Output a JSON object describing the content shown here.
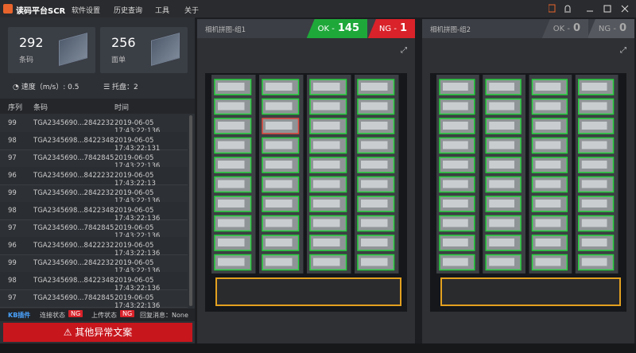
{
  "app": {
    "title": "读码平台SCR",
    "menu": [
      "软件设置",
      "历史查询",
      "工具",
      "关于"
    ]
  },
  "stats": [
    {
      "value": 292,
      "label": "条码"
    },
    {
      "value": 256,
      "label": "面单"
    }
  ],
  "speed": {
    "label": "速度（m/s）:",
    "value": 0.5
  },
  "pallet": {
    "label": "托盘：",
    "value": 2
  },
  "table": {
    "columns": [
      "序列",
      "条码",
      "时间"
    ],
    "rows": [
      [
        99,
        "TGA2345690...2842232",
        "2019-06-05 17:43:22:136"
      ],
      [
        98,
        "TGA2345698...8422348",
        "2019-06-05 17:43:22:131"
      ],
      [
        97,
        "TGA2345690...7842845",
        "2019-06-05 17:43:22:136"
      ],
      [
        96,
        "TGA2345690...8422232",
        "2019-06-05 17:43:22:13"
      ],
      [
        99,
        "TGA2345690...2842232",
        "2019-06-05 17:43:22:136"
      ],
      [
        98,
        "TGA2345698...8422348",
        "2019-06-05 17:43:22:136"
      ],
      [
        97,
        "TGA2345690...7842845",
        "2019-06-05 17:43:22:136"
      ],
      [
        96,
        "TGA2345690...8422232",
        "2019-06-05 17:43:22:136"
      ],
      [
        99,
        "TGA2345690...2842232",
        "2019-06-05 17:43:22:136"
      ],
      [
        98,
        "TGA2345698...8422348",
        "2019-06-05 17:43:22:136"
      ],
      [
        97,
        "TGA2345690...7842845",
        "2019-06-05 17:43:22:136"
      ]
    ]
  },
  "status": {
    "plugin": "KB插件",
    "connection": {
      "label": "连接状态",
      "value": "NG"
    },
    "upload": {
      "label": "上传状态",
      "value": "NG"
    },
    "reply": "回复消息：None"
  },
  "alert": "其他异常文案",
  "cameras": [
    {
      "title": "相机拼图-组1",
      "ok_label": "OK -",
      "ok": 145,
      "ng_label": "NG -",
      "ng": 1
    },
    {
      "title": "相机拼图-组2",
      "ok_label": "OK -",
      "ok": 0,
      "ng_label": "NG -",
      "ng": 0
    }
  ]
}
